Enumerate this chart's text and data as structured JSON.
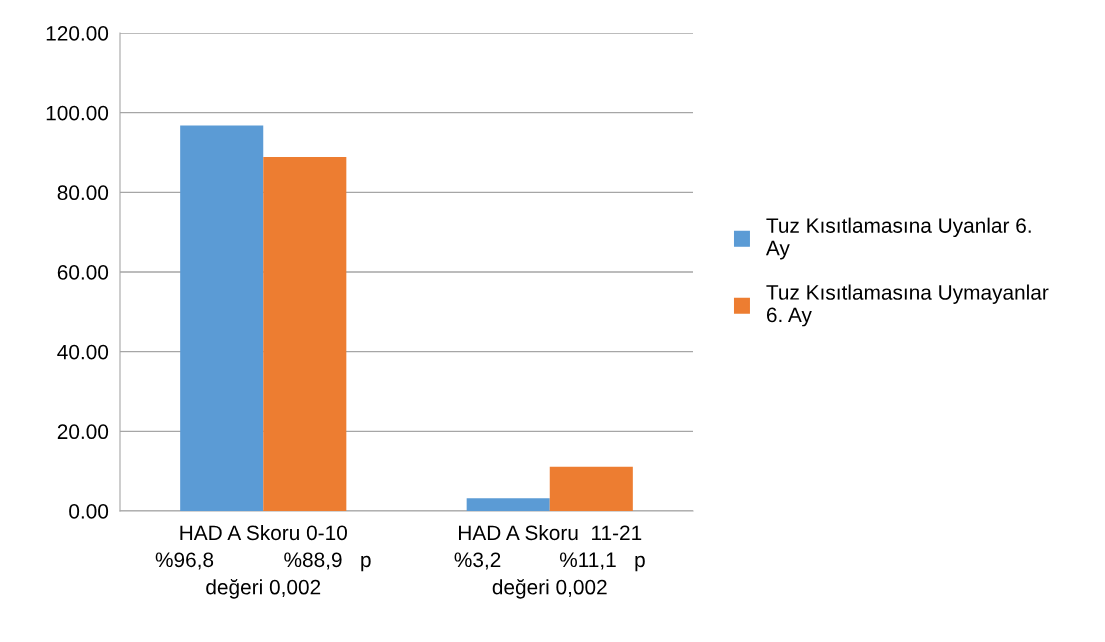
{
  "chart_data": {
    "type": "bar",
    "categories": [
      "HAD A Skoru 0-10\n%96,8            %88,9   p\ndeğeri 0,002",
      "HAD A Skoru  11-21\n%3,2          %11,1   p\ndeğeri 0,002"
    ],
    "series": [
      {
        "name": "Tuz Kısıtlamasına Uyanlar 6.\nAy",
        "color": "#5b9bd5",
        "values": [
          96.8,
          3.2
        ]
      },
      {
        "name": "Tuz Kısıtlamasına Uymayanlar\n6. Ay",
        "color": "#ed7d31",
        "values": [
          88.9,
          11.1
        ]
      }
    ],
    "ylim": [
      0,
      120
    ],
    "yticks": [
      {
        "value": 0,
        "label": "0.00"
      },
      {
        "value": 20,
        "label": "20.00"
      },
      {
        "value": 40,
        "label": "40.00"
      },
      {
        "value": 60,
        "label": "60.00"
      },
      {
        "value": 80,
        "label": "80.00"
      },
      {
        "value": 100,
        "label": "100.00"
      },
      {
        "value": 120,
        "label": "120.00"
      }
    ],
    "grid": "y",
    "legend": "right"
  }
}
